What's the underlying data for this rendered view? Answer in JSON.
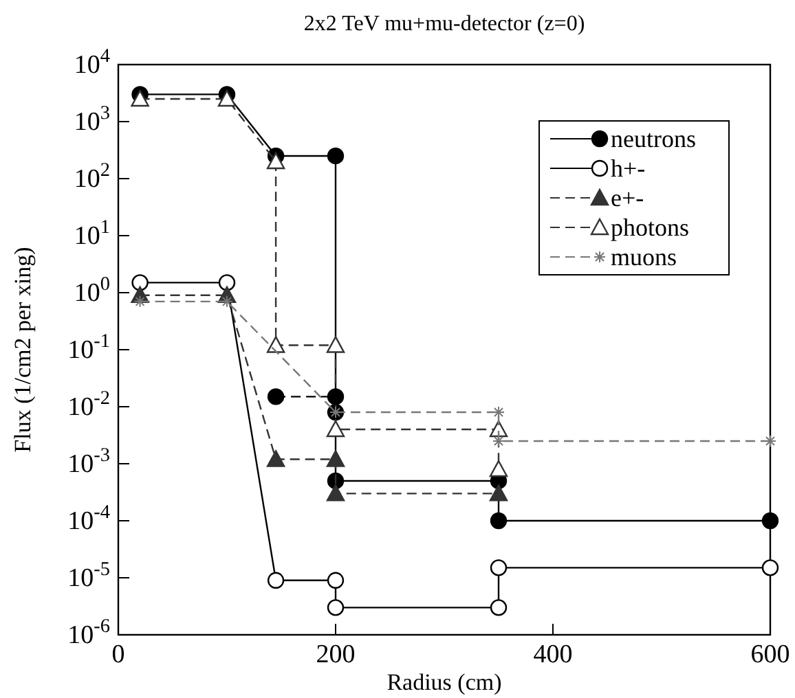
{
  "chart_data": {
    "type": "line",
    "title": "2x2 TeV mu+mu-detector (z=0)",
    "xlabel": "Radius (cm)",
    "ylabel": "Flux (1/cm2 per xing)",
    "log": "y",
    "xlim": [
      0,
      600
    ],
    "xticks": [
      0,
      200,
      400,
      600
    ],
    "ylim": [
      1e-06,
      10000
    ],
    "yticks": [
      {
        "value": 1e-06,
        "label": "10$^{-6}$"
      },
      {
        "value": 1e-05,
        "label": "10$^{-5}$"
      },
      {
        "value": 0.0001,
        "label": "10$^{-4}$"
      },
      {
        "value": 0.001,
        "label": "10$^{-3}$"
      },
      {
        "value": 0.01,
        "label": "10$^{-2}$"
      },
      {
        "value": 0.1,
        "label": "10$^{-1}$"
      },
      {
        "value": 1,
        "label": "10$^{0}$"
      },
      {
        "value": 10,
        "label": "10$^{1}$"
      },
      {
        "value": 100,
        "label": "10$^{2}$"
      },
      {
        "value": 1000,
        "label": "10$^{3}$"
      },
      {
        "value": 10000,
        "label": "10$^{4}$"
      }
    ],
    "legend": "top right",
    "grid": false,
    "series": [
      {
        "name": "neutrons",
        "color": "#000000",
        "marker": "circle",
        "line_style": "solid",
        "x": [
          20,
          100,
          145,
          200,
          200,
          200,
          350,
          350,
          600
        ],
        "values": [
          3000,
          3000,
          250,
          250,
          0.008,
          0.0005,
          0.0005,
          0.0001,
          0.0001
        ]
      },
      {
        "name": "h+-",
        "color": "#000000",
        "marker": "circle",
        "line_style": "solid",
        "x": [
          20,
          100,
          145,
          200,
          200,
          350,
          350,
          600
        ],
        "values": [
          1.5,
          1.5,
          9e-06,
          9e-06,
          3e-06,
          3e-06,
          1.5e-05,
          1.5e-05
        ]
      },
      {
        "name": "e+-",
        "color": "#333333",
        "marker": "triangle",
        "line_style": "dashed",
        "x": [
          20,
          100,
          145,
          200,
          200,
          350
        ],
        "values": [
          0.9,
          0.9,
          0.0012,
          0.0012,
          0.0003,
          0.0003
        ]
      },
      {
        "name": "photons",
        "color": "#333333",
        "marker": "triangle",
        "line_style": "dashed",
        "x": [
          20,
          100,
          145,
          145,
          200,
          200,
          350,
          350
        ],
        "values": [
          2500,
          2500,
          200,
          0.12,
          0.12,
          0.004,
          0.004,
          0.0008
        ]
      },
      {
        "name": "muons",
        "color": "#777777",
        "marker": "cross",
        "line_style": "dashed",
        "x": [
          20,
          100,
          200,
          350,
          350,
          600
        ],
        "values": [
          0.7,
          0.7,
          0.008,
          0.008,
          0.0025,
          0.0025
        ]
      },
      {
        "color": "#000000",
        "marker": "circle",
        "line_style": "dashed",
        "x": [
          145,
          200
        ],
        "values": [
          0.015,
          0.015
        ]
      }
    ]
  }
}
